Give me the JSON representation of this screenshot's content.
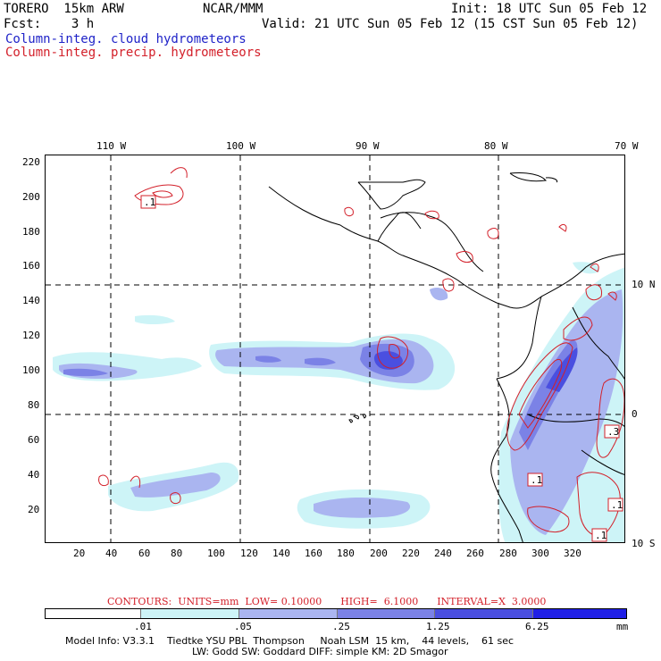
{
  "header": {
    "model": "TORERO  15km ARW",
    "org": "NCAR/MMM",
    "init": "Init: 18 UTC Sun 05 Feb 12",
    "fcst": "Fcst:    3 h",
    "valid": "Valid: 21 UTC Sun 05 Feb 12 (15 CST Sun 05 Feb 12)",
    "field_cloud": "Column-integ. cloud hydrometeors",
    "field_precip": "Column-integ. precip. hydrometeors"
  },
  "map": {
    "lon_labels": [
      "110 W",
      "100 W",
      "90 W",
      "80 W",
      "70 W"
    ],
    "lat_labels": [
      "10 N",
      "0",
      "10 S"
    ],
    "y_grid": [
      "220",
      "200",
      "180",
      "160",
      "140",
      "120",
      "100",
      "80",
      "60",
      "40",
      "20"
    ],
    "x_grid": [
      "20",
      "40",
      "60",
      "80",
      "100",
      "120",
      "140",
      "160",
      "180",
      "200",
      "220",
      "240",
      "260",
      "280",
      "300",
      "320"
    ],
    "box_labels": [
      ".1",
      ".1",
      ".3",
      ".1",
      ".1"
    ],
    "colors": {
      "border": "#000000",
      "contour": "#d3202a",
      "fill_01": "#cdf4f7",
      "fill_05": "#aab5f0",
      "fill_25": "#7b82e6",
      "fill_125": "#4a4fe0",
      "fill_625": "#2020e6"
    }
  },
  "contours_line": "CONTOURS:  UNITS=mm  LOW= 0.10000      HIGH=  6.1000      INTERVAL=X  3.0000",
  "legend": {
    "labels": [
      ".01",
      ".05",
      ".25",
      "1.25",
      "6.25"
    ],
    "units": "mm",
    "colors": [
      "#ffffff",
      "#cdf4f7",
      "#aab5f0",
      "#7b82e6",
      "#4a4fe0",
      "#2020e6"
    ]
  },
  "footer": {
    "line1": "Model Info: V3.3.1    Tiedtke YSU PBL  Thompson     Noah LSM  15 km,    44 levels,    61 sec",
    "line2": "LW: Godd SW: Goddard DIFF: simple KM: 2D Smagor"
  }
}
